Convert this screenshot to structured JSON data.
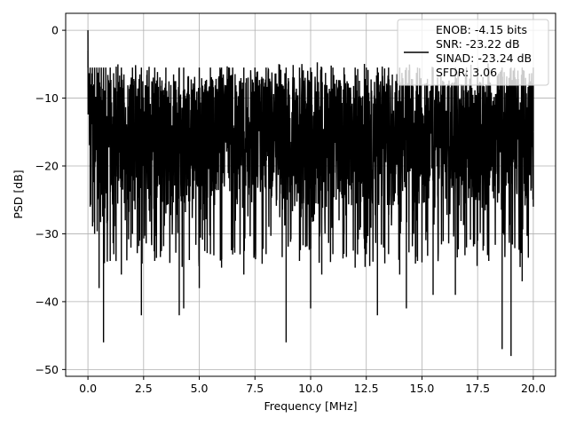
{
  "chart_data": {
    "type": "line",
    "title": "",
    "xlabel": "Frequency [MHz]",
    "ylabel": "PSD [dB]",
    "xlim": [
      -1.0,
      21.0
    ],
    "ylim": [
      -51.0,
      2.5
    ],
    "x_ticks": [
      0.0,
      2.5,
      5.0,
      7.5,
      10.0,
      12.5,
      15.0,
      17.5,
      20.0
    ],
    "x_tick_labels": [
      "0.0",
      "2.5",
      "5.0",
      "7.5",
      "10.0",
      "12.5",
      "15.0",
      "17.5",
      "20.0"
    ],
    "y_ticks": [
      0,
      -10,
      -20,
      -30,
      -40,
      -50
    ],
    "y_tick_labels": [
      "0",
      "−10",
      "−20",
      "−30",
      "−40",
      "−50"
    ],
    "grid": true,
    "legend": {
      "placement": "top-right",
      "lines": [
        "ENOB: -4.15 bits",
        "SNR: -23.22 dB",
        "SINAD: -23.24 dB",
        "SFDR: 3.06"
      ]
    },
    "series": [
      {
        "color": "#000000",
        "x_range": [
          0.0,
          20.0
        ],
        "peak": [
          0.0,
          0.0
        ],
        "approx_points": [
          [
            0.0,
            -3
          ],
          [
            0.1,
            -26
          ],
          [
            0.2,
            -8
          ],
          [
            0.3,
            -30
          ],
          [
            0.4,
            -10
          ],
          [
            0.5,
            -38
          ],
          [
            0.6,
            -12
          ],
          [
            0.7,
            -46
          ],
          [
            0.8,
            -14
          ],
          [
            1.0,
            -34
          ],
          [
            1.5,
            -36
          ],
          [
            2.0,
            -30
          ],
          [
            2.4,
            -42
          ],
          [
            3.0,
            -34
          ],
          [
            3.5,
            -27
          ],
          [
            4.1,
            -42
          ],
          [
            4.3,
            -41
          ],
          [
            5.0,
            -38
          ],
          [
            5.5,
            -33
          ],
          [
            6.0,
            -35
          ],
          [
            6.5,
            -30
          ],
          [
            7.0,
            -36
          ],
          [
            7.5,
            -27
          ],
          [
            8.0,
            -33
          ],
          [
            8.9,
            -46
          ],
          [
            9.5,
            -34
          ],
          [
            10.0,
            -41
          ],
          [
            10.5,
            -36
          ],
          [
            11.0,
            -33
          ],
          [
            11.5,
            -30
          ],
          [
            12.0,
            -35
          ],
          [
            12.5,
            -33
          ],
          [
            13.0,
            -42
          ],
          [
            13.5,
            -33
          ],
          [
            14.0,
            -36
          ],
          [
            14.3,
            -41
          ],
          [
            14.8,
            -34
          ],
          [
            15.5,
            -39
          ],
          [
            16.5,
            -39
          ],
          [
            17.0,
            -32
          ],
          [
            17.5,
            -31
          ],
          [
            18.0,
            -34
          ],
          [
            18.6,
            -47
          ],
          [
            19.0,
            -48
          ],
          [
            19.5,
            -37
          ],
          [
            20.0,
            -26
          ]
        ],
        "envelope_top_dB": -6.5,
        "envelope_bottom_dB": -26
      }
    ]
  }
}
